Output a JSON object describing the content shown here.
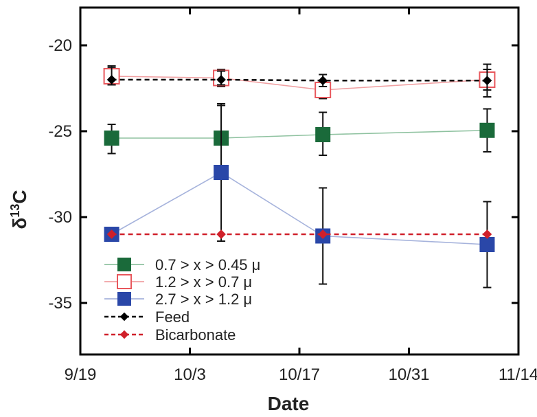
{
  "chart_data": {
    "type": "line",
    "title": "",
    "xlabel": "Date",
    "ylabel": "δ",
    "ylabel_sup": "13",
    "ylabel_tail": "C",
    "x_tick_labels": [
      "9/19",
      "10/3",
      "10/17",
      "10/31",
      "11/14"
    ],
    "x_ticks": [
      "2000-09-19",
      "2000-10-03",
      "2000-10-17",
      "2000-10-31",
      "2000-11-14"
    ],
    "xlim": [
      "2000-09-19",
      "2000-11-14"
    ],
    "y_ticks": [
      -20,
      -25,
      -30,
      -35
    ],
    "y_tick_labels": [
      "-20",
      "-25",
      "-30",
      "-35"
    ],
    "ylim": [
      -38,
      -17.8
    ],
    "grid": false,
    "legend_position": "bottom-left",
    "x": [
      "2000-09-23",
      "2000-10-07",
      "2000-10-20",
      "2000-11-10"
    ],
    "series": [
      {
        "name": "0.7 > x > 0.45 μ",
        "marker": "square-filled",
        "line_style": "solid",
        "color": "#1a6a3a",
        "line_color": "#8fc2a0",
        "values": [
          -25.4,
          -25.4,
          -25.2,
          -24.95
        ],
        "err_low": [
          -26.3,
          -27.3,
          -26.4,
          -26.2
        ],
        "err_high": [
          -24.6,
          -23.5,
          -23.9,
          -23.7
        ]
      },
      {
        "name": "1.2 > x > 0.7 μ",
        "marker": "square-open",
        "line_style": "solid",
        "color": "#e8575c",
        "line_color": "#f0a0a2",
        "values": [
          -21.8,
          -21.9,
          -22.6,
          -22.0
        ],
        "err_low": [
          -22.3,
          -22.4,
          -23.1,
          -22.6
        ],
        "err_high": [
          -21.3,
          -21.4,
          -22.1,
          -21.4
        ]
      },
      {
        "name": "2.7 > x > 1.2 μ",
        "marker": "square-filled",
        "line_style": "solid",
        "color": "#2a47a8",
        "line_color": "#a6b3dc",
        "values": [
          -31.0,
          -27.4,
          -31.1,
          -31.6
        ],
        "err_low": [
          -31.0,
          -31.4,
          -33.9,
          -34.1
        ],
        "err_high": [
          -31.0,
          -23.4,
          -28.3,
          -29.1
        ]
      },
      {
        "name": "Feed",
        "marker": "diamond",
        "line_style": "dashed",
        "color": "#000000",
        "line_color": "#000000",
        "values": [
          -22.0,
          -22.0,
          -22.05,
          -22.05
        ],
        "err_low": [
          -22.3,
          -22.3,
          -22.4,
          -23.0
        ],
        "err_high": [
          -21.2,
          -21.5,
          -21.7,
          -21.1
        ]
      },
      {
        "name": "Bicarbonate",
        "marker": "diamond",
        "line_style": "dashed",
        "color": "#d0202a",
        "line_color": "#d0202a",
        "values": [
          -31.0,
          -31.0,
          -31.0,
          -31.0
        ],
        "err_low": [
          null,
          null,
          null,
          null
        ],
        "err_high": [
          null,
          null,
          null,
          null
        ]
      }
    ]
  }
}
